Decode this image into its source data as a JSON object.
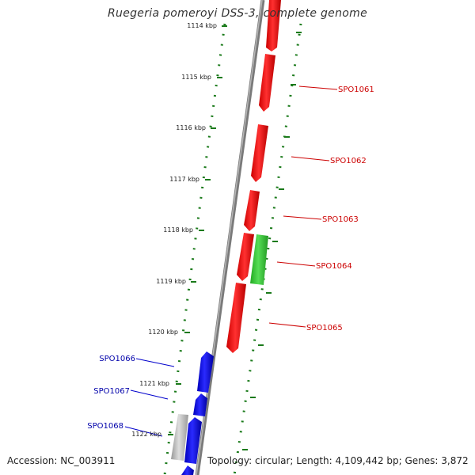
{
  "title": "Ruegeria pomeroyi DSS-3, complete genome",
  "footer": {
    "accession": "Accession: NC_003911",
    "summary": "Topology: circular; Length: 4,109,442 bp; Genes: 3,872"
  },
  "colors": {
    "backbone": "#888888",
    "tick_marks": "#1a7a1a",
    "forward_strand_genes": "#ee0000",
    "reverse_strand_genes": "#0000dd",
    "other_genes": "#33cc33",
    "rna_genes": "#bbbbbb",
    "red_labels": "#cc0000",
    "blue_labels": "#0000aa"
  },
  "scale_labels": [
    "1114 kbp",
    "1115 kbp",
    "1116 kbp",
    "1117 kbp",
    "1118 kbp",
    "1119 kbp",
    "1120 kbp",
    "1121 kbp",
    "1122 kbp"
  ],
  "gene_labels": {
    "right": [
      "SPO1061",
      "SPO1062",
      "SPO1063",
      "SPO1064",
      "SPO1065"
    ],
    "left": [
      "SPO1066",
      "SPO1067",
      "SPO1068"
    ]
  }
}
